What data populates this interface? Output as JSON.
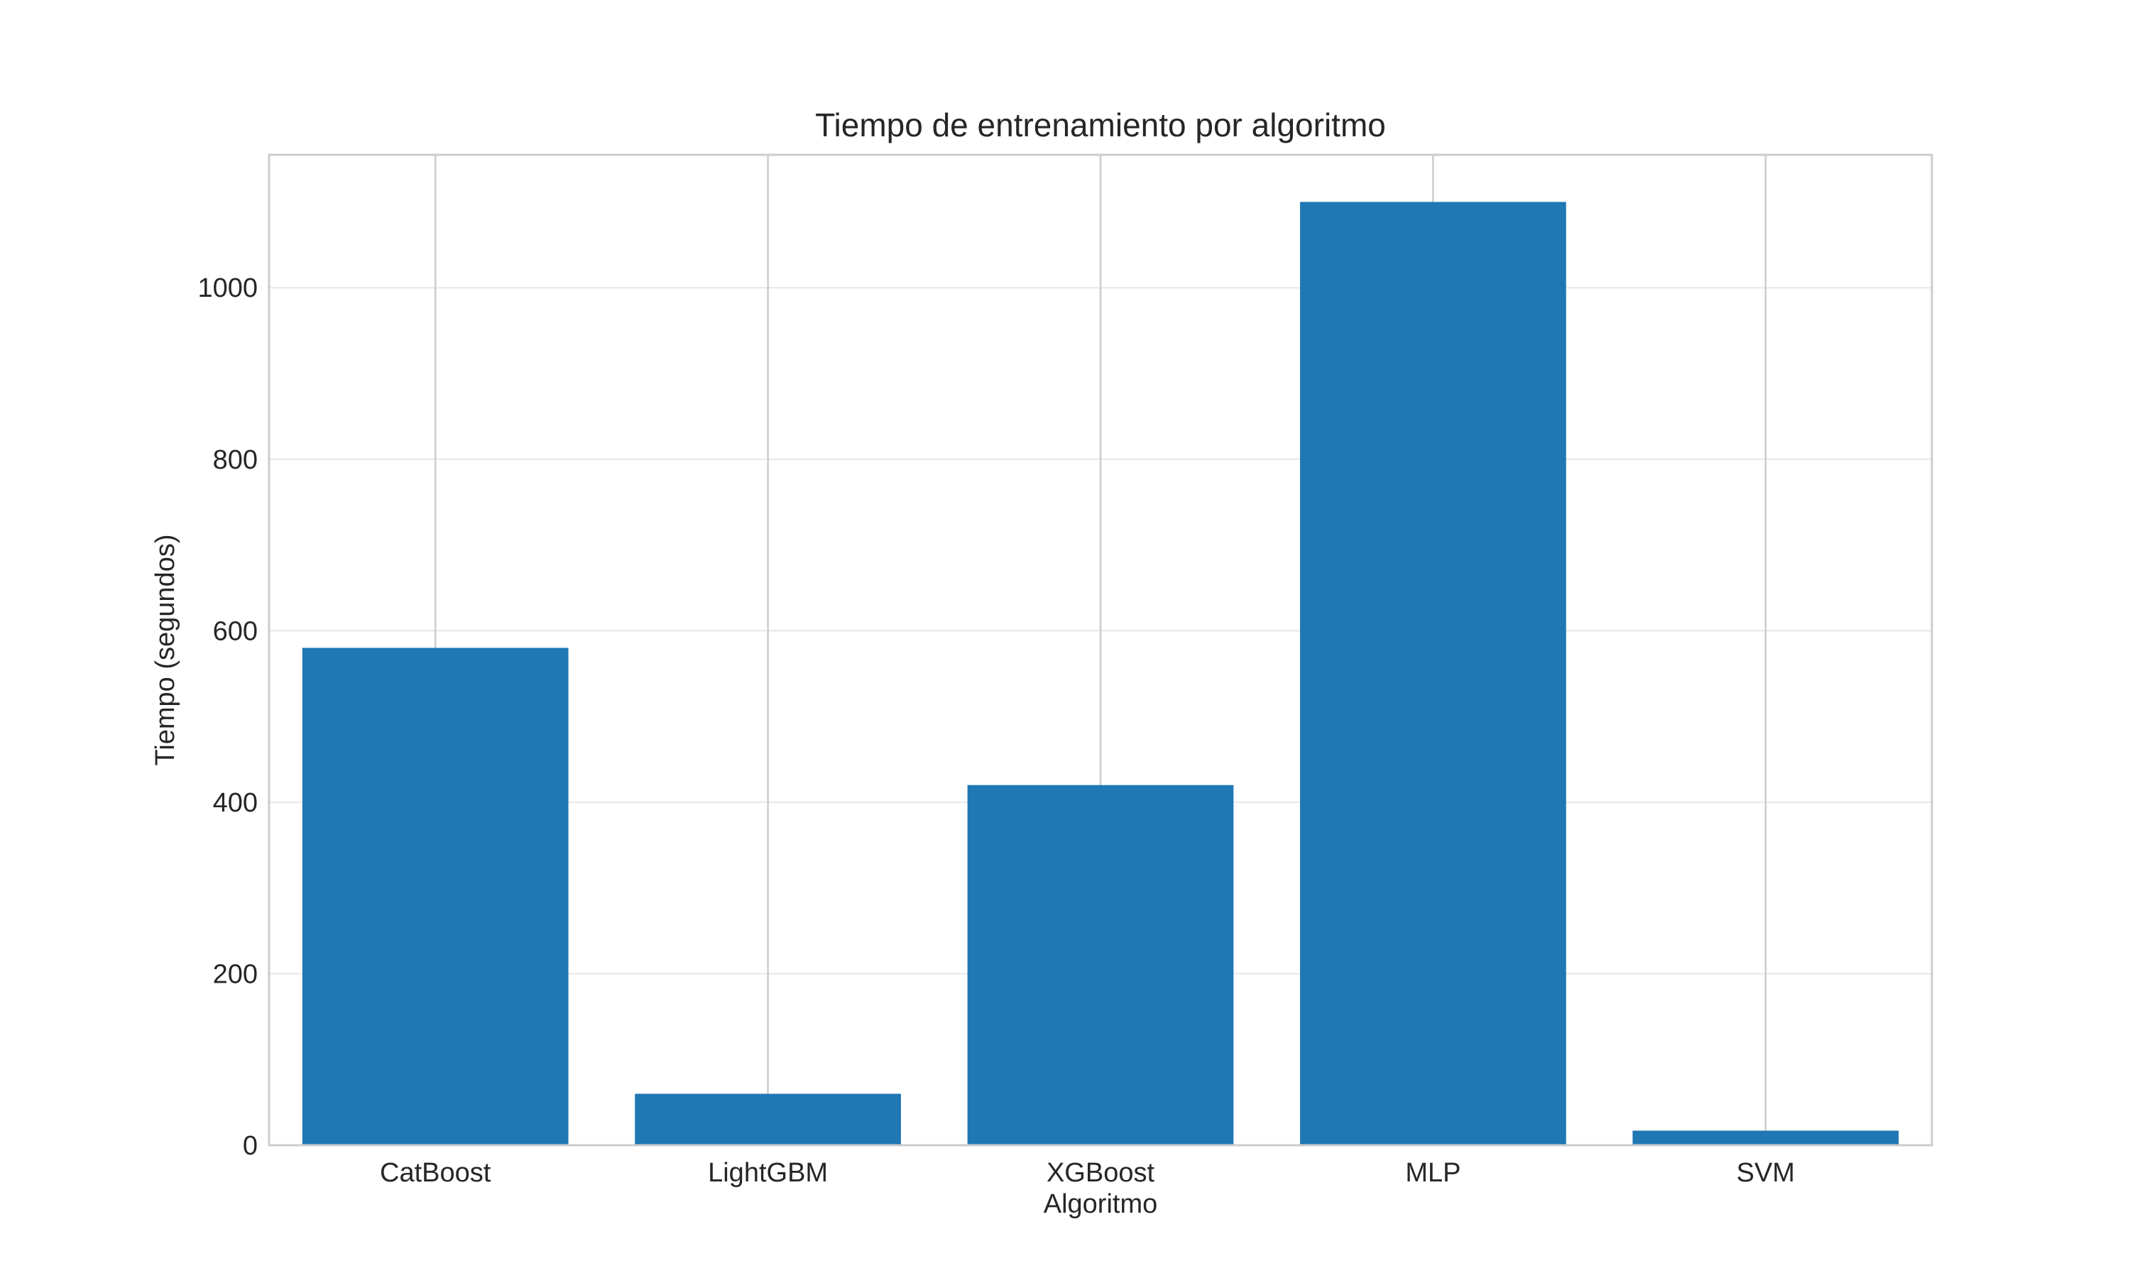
{
  "chart_data": {
    "type": "bar",
    "title": "Tiempo de entrenamiento por algoritmo",
    "xlabel": "Algoritmo",
    "ylabel": "Tiempo (segundos)",
    "categories": [
      "CatBoost",
      "LightGBM",
      "XGBoost",
      "MLP",
      "SVM"
    ],
    "values": [
      580,
      60,
      420,
      1100,
      17
    ],
    "ylim": [
      0,
      1155
    ],
    "yticks": [
      0,
      200,
      400,
      600,
      800,
      1000
    ],
    "ytick_labels": [
      "0",
      "200",
      "400",
      "600",
      "800",
      "1000"
    ],
    "grid": true,
    "legend": "none",
    "bar_color": "#1f77b4",
    "grid_color": "#cccccc",
    "frame_color": "#cccccc"
  }
}
